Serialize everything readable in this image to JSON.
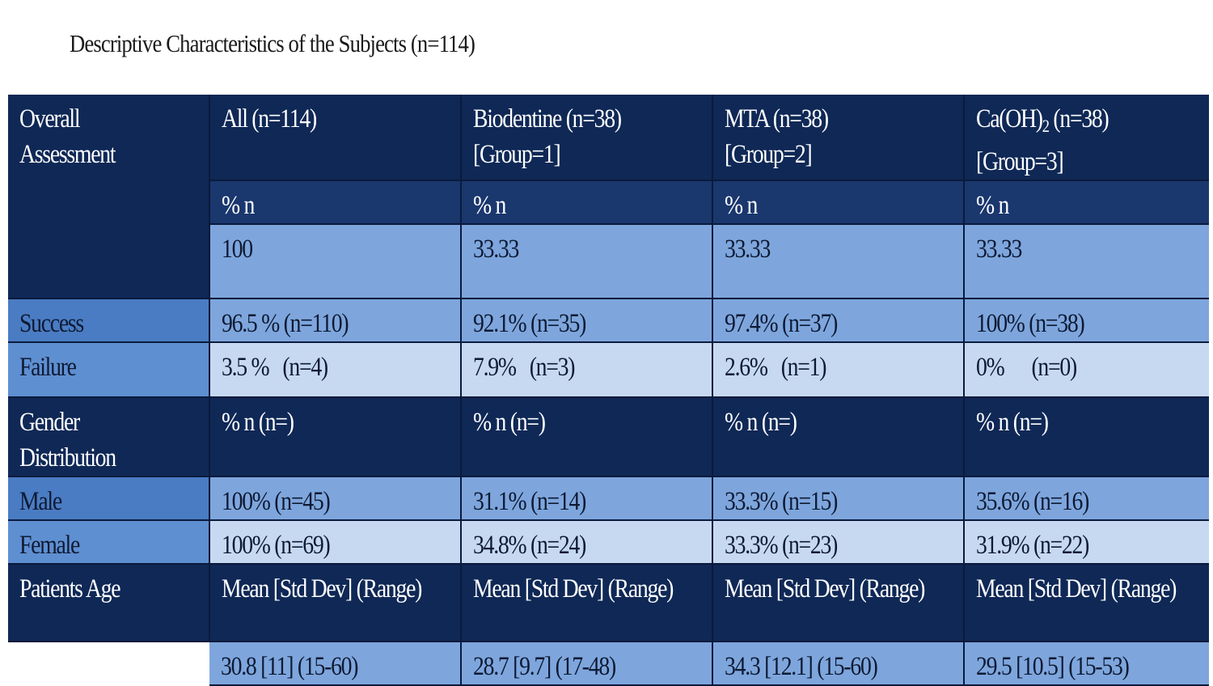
{
  "caption": "Descriptive Characteristics of the Subjects (n=114)",
  "header": {
    "overall_assessment": [
      "Overall",
      "Assessment"
    ],
    "groups": [
      {
        "line1": "All (n=114)",
        "line2": ""
      },
      {
        "line1": "Biodentine (n=38)",
        "line2": "[Group=1]"
      },
      {
        "line1": "MTA (n=38)",
        "line2": "[Group=2]"
      },
      {
        "line1_pre": "Ca(OH)",
        "line1_sub": "2",
        "line1_post": " (n=38)",
        "line2": "[Group=3]"
      }
    ],
    "percent_n": [
      "% n",
      "% n",
      "% n",
      "% n"
    ],
    "percent_values": [
      "100",
      "33.33",
      "33.33",
      "33.33"
    ]
  },
  "outcome": {
    "success": {
      "label": "Success",
      "values": [
        "96.5 % (n=110)",
        "92.1% (n=35)",
        "97.4% (n=37)",
        "100% (n=38)"
      ]
    },
    "failure": {
      "label": "Failure",
      "values": [
        "3.5 %   (n=4)",
        "7.9%   (n=3)",
        "2.6%   (n=1)",
        "0%      (n=0)"
      ]
    }
  },
  "gender": {
    "label": [
      "Gender",
      "Distribution"
    ],
    "header": [
      "% n (n=)",
      "% n (n=)",
      "% n (n=)",
      "% n (n=)"
    ],
    "male": {
      "label": "Male",
      "values": [
        "100% (n=45)",
        "31.1% (n=14)",
        "33.3% (n=15)",
        "35.6% (n=16)"
      ]
    },
    "female": {
      "label": "Female",
      "values": [
        "100% (n=69)",
        "34.8% (n=24)",
        "33.3% (n=23)",
        "31.9% (n=22)"
      ]
    }
  },
  "age": {
    "label": "Patients Age",
    "header": [
      "Mean [Std Dev] (Range)",
      "Mean [Std Dev] (Range)",
      "Mean [Std Dev] (Range)",
      "Mean [Std Dev] (Range)"
    ],
    "values": [
      "30.8 [11] (15-60)",
      "28.7 [9.7] (17-48)",
      "34.3 [12.1] (15-60)",
      "29.5 [10.5] (15-53)"
    ]
  },
  "colors": {
    "dark_navy": "#0f2856",
    "header_navy": "#1a376e",
    "mid_blue": "#7ea6dd",
    "light_blue": "#c6d9f1",
    "label_blue": "#5e8fd1"
  }
}
